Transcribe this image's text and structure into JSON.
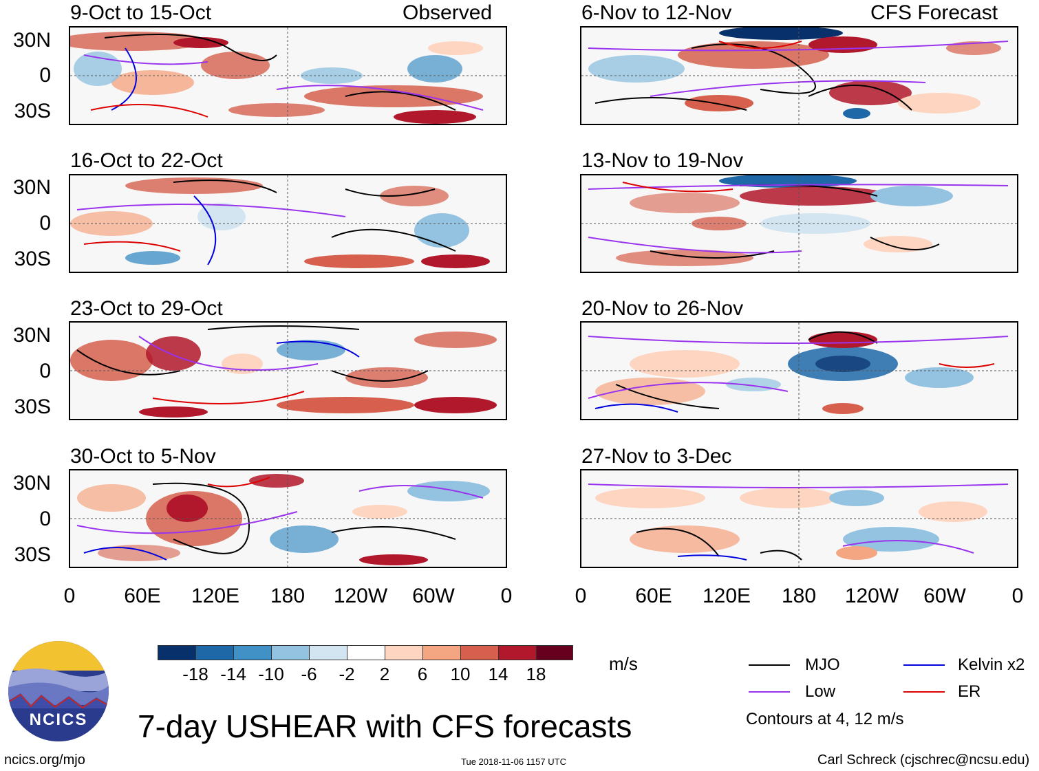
{
  "panels_left_header": "Observed",
  "panels_right_header": "CFS Forecast",
  "left_panels": [
    {
      "title": "9-Oct to 15-Oct"
    },
    {
      "title": "16-Oct to 22-Oct"
    },
    {
      "title": "23-Oct to 29-Oct"
    },
    {
      "title": "30-Oct to 5-Nov"
    }
  ],
  "right_panels": [
    {
      "title": "6-Nov to 12-Nov"
    },
    {
      "title": "13-Nov to 19-Nov"
    },
    {
      "title": "20-Nov to 26-Nov"
    },
    {
      "title": "27-Nov to 3-Dec"
    }
  ],
  "lat_labels": [
    "30N",
    "0",
    "30S"
  ],
  "lon_labels": [
    "0",
    "60E",
    "120E",
    "180",
    "120W",
    "60W",
    "0"
  ],
  "colorbar": {
    "ticks": [
      "-18",
      "-14",
      "-10",
      "-6",
      "-2",
      "2",
      "6",
      "10",
      "14",
      "18"
    ],
    "colors": [
      "#08306b",
      "#1f68a8",
      "#4291c6",
      "#93c3e0",
      "#d2e5f0",
      "#ffffff",
      "#fdd5c0",
      "#f4a582",
      "#d6604d",
      "#b2182b",
      "#67001f"
    ],
    "units": "m/s"
  },
  "legend": {
    "mjo": "MJO",
    "kelvin": "Kelvin x2",
    "low": "Low",
    "er": "ER",
    "note": "Contours at 4, 12 m/s",
    "colors": {
      "mjo": "#000000",
      "kelvin": "#0000dd",
      "low": "#9933ee",
      "er": "#dd0000"
    }
  },
  "title": "7-day USHEAR with CFS forecasts",
  "logo": {
    "text": "NCICS"
  },
  "footer": {
    "url": "ncics.org/mjo",
    "timestamp": "Tue 2018-11-06 1157 UTC",
    "author": "Carl Schreck (cjschrec@ncsu.edu)"
  }
}
